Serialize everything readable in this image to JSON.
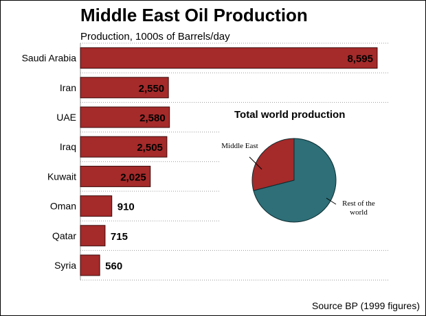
{
  "chart_data": [
    {
      "type": "bar",
      "orientation": "horizontal",
      "title": "Middle East Oil Production",
      "subtitle": "Production, 1000s of Barrels/day",
      "categories": [
        "Saudi Arabia",
        "Iran",
        "UAE",
        "Iraq",
        "Kuwait",
        "Oman",
        "Qatar",
        "Syria"
      ],
      "values": [
        8595,
        2550,
        2580,
        2505,
        2025,
        910,
        715,
        560
      ],
      "value_labels": [
        "8,595",
        "2,550",
        "2,580",
        "2,505",
        "2,025",
        "910",
        "715",
        "560"
      ],
      "xlim": [
        0,
        10000
      ],
      "grid": "horizontal dotted lines",
      "bar_color": "#a52a2a"
    },
    {
      "type": "pie",
      "title": "Total world production",
      "slices": [
        {
          "label": "Middle East",
          "value": 29,
          "color": "#a52a2a"
        },
        {
          "label": "Rest of the world",
          "value": 71,
          "color": "#2e6f78"
        }
      ]
    }
  ],
  "source": "Source BP (1999 figures)"
}
